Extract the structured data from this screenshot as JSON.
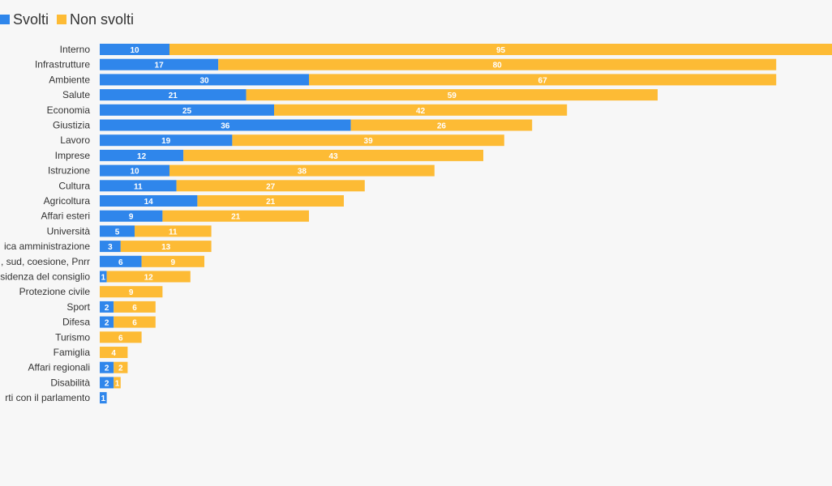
{
  "colors": {
    "svolti": "#2f86eb",
    "non_svolti": "#fdbb35"
  },
  "legend": {
    "svolti_label": "Svolti",
    "non_svolti_label": "Non svolti"
  },
  "chart_data": {
    "type": "bar",
    "orientation": "horizontal",
    "stacked": true,
    "legend_position": "top-left",
    "grid": false,
    "xlim": [
      0,
      105
    ],
    "categories": [
      "Interno",
      "Infrastrutture",
      "Ambiente",
      "Salute",
      "Economia",
      "Giustizia",
      "Lavoro",
      "Imprese",
      "Istruzione",
      "Cultura",
      "Agricoltura",
      "Affari esteri",
      "Università",
      "ica amministrazione",
      ", sud, coesione, Pnrr",
      "sidenza del consiglio",
      "Protezione civile",
      "Sport",
      "Difesa",
      "Turismo",
      "Famiglia",
      "Affari regionali",
      "Disabilità",
      "rti con il parlamento"
    ],
    "series": [
      {
        "name": "Svolti",
        "values": [
          10,
          17,
          30,
          21,
          25,
          36,
          19,
          12,
          10,
          11,
          14,
          9,
          5,
          3,
          6,
          1,
          0,
          2,
          2,
          0,
          0,
          2,
          2,
          1
        ]
      },
      {
        "name": "Non svolti",
        "values": [
          95,
          80,
          67,
          59,
          42,
          26,
          39,
          43,
          38,
          27,
          21,
          21,
          11,
          13,
          9,
          12,
          9,
          6,
          6,
          6,
          4,
          2,
          1,
          0
        ]
      }
    ]
  }
}
